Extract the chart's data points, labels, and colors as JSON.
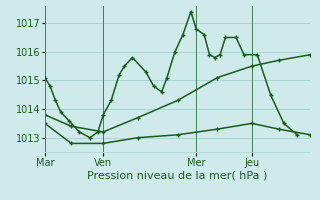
{
  "background_color": "#ceeaea",
  "grid_color": "#a8d4d4",
  "line_color": "#1a5c1a",
  "title": "Pression niveau de la mer( hPa )",
  "ylim": [
    1012.5,
    1017.6
  ],
  "yticks": [
    1013,
    1014,
    1015,
    1016,
    1017
  ],
  "day_labels": [
    "Mar",
    "Ven",
    "Mer",
    "Jeu"
  ],
  "day_positions": [
    0,
    0.22,
    0.57,
    0.78
  ],
  "series1_x": [
    0.0,
    0.02,
    0.04,
    0.06,
    0.09,
    0.13,
    0.17,
    0.2,
    0.22,
    0.25,
    0.28,
    0.3,
    0.33,
    0.38,
    0.41,
    0.44,
    0.46,
    0.49,
    0.52,
    0.55,
    0.57,
    0.6,
    0.62,
    0.64,
    0.66,
    0.68,
    0.72,
    0.75,
    0.8,
    0.85,
    0.9,
    0.95
  ],
  "series1_y": [
    1015.1,
    1014.8,
    1014.3,
    1013.9,
    1013.6,
    1013.2,
    1013.0,
    1013.2,
    1013.8,
    1014.3,
    1015.2,
    1015.5,
    1015.8,
    1015.3,
    1014.8,
    1014.6,
    1015.1,
    1016.0,
    1016.6,
    1017.4,
    1016.8,
    1016.6,
    1015.9,
    1015.8,
    1015.9,
    1016.5,
    1016.5,
    1015.9,
    1015.9,
    1014.5,
    1013.5,
    1013.1
  ],
  "series2_x": [
    0.0,
    0.1,
    0.22,
    0.35,
    0.5,
    0.65,
    0.78,
    0.88,
    1.0
  ],
  "series2_y": [
    1013.8,
    1013.4,
    1013.2,
    1013.7,
    1014.3,
    1015.1,
    1015.5,
    1015.7,
    1015.9
  ],
  "series3_x": [
    0.0,
    0.1,
    0.22,
    0.35,
    0.5,
    0.65,
    0.78,
    0.88,
    1.0
  ],
  "series3_y": [
    1013.5,
    1012.8,
    1012.8,
    1013.0,
    1013.1,
    1013.3,
    1013.5,
    1013.3,
    1013.1
  ]
}
